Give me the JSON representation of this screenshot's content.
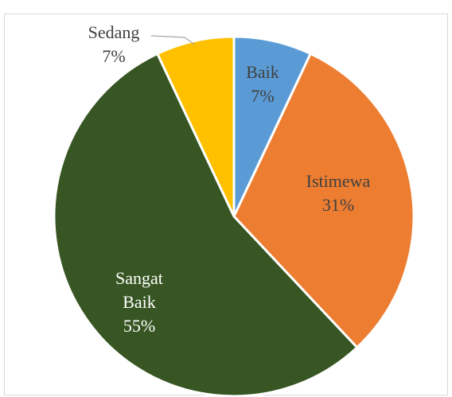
{
  "chart_data": {
    "type": "pie",
    "title": "",
    "slices": [
      {
        "label_lines": [
          "Baik",
          "7%"
        ],
        "value": 7,
        "color": "#5b9bd5",
        "text_color": "#404040"
      },
      {
        "label_lines": [
          "Istimewa",
          "31%"
        ],
        "value": 31,
        "color": "#ed7d31",
        "text_color": "#404040"
      },
      {
        "label_lines": [
          "Sangat",
          "Baik",
          "55%"
        ],
        "value": 55,
        "color": "#375623",
        "text_color": "#ffffff"
      },
      {
        "label_lines": [
          "Sedang",
          "7%"
        ],
        "value": 7,
        "color": "#ffc000",
        "text_color": "#404040"
      }
    ],
    "start_angle": "12 o'clock",
    "direction": "clockwise",
    "legend": "none",
    "data_labels": "category and percentage"
  }
}
